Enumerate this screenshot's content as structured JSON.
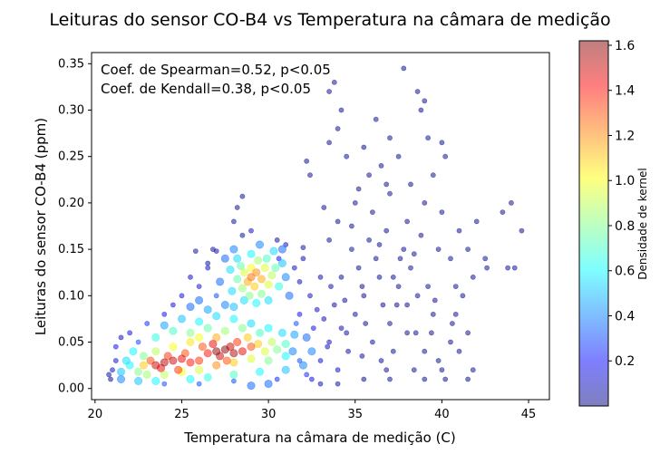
{
  "chart_data": {
    "type": "scatter",
    "title": "Leituras do sensor CO-B4 vs Temperatura na câmara de medição",
    "xlabel": "Temperatura na câmara de medição (C)",
    "ylabel": "Leituras do sensor CO-B4 (ppm)",
    "xlim": [
      19.8,
      46.2
    ],
    "ylim": [
      -0.012,
      0.362
    ],
    "xticks": [
      20,
      25,
      30,
      35,
      40,
      45
    ],
    "yticks": [
      0.0,
      0.05,
      0.1,
      0.15,
      0.2,
      0.25,
      0.3,
      0.35
    ],
    "xtick_labels": [
      "20",
      "25",
      "30",
      "35",
      "40",
      "45"
    ],
    "ytick_labels": [
      "0.00",
      "0.05",
      "0.10",
      "0.15",
      "0.20",
      "0.25",
      "0.30",
      "0.35"
    ],
    "grid": false,
    "annotations": [
      "Coef. de Spearman=0.52, p<0.05",
      "Coef. de Kendall=0.38, p<0.05"
    ],
    "colorbar": {
      "label": "Densidade de kernel",
      "range": [
        0.0,
        1.62
      ],
      "ticks": [
        0.2,
        0.4,
        0.6,
        0.8,
        1.0,
        1.2,
        1.4,
        1.6
      ],
      "tick_labels": [
        "0.2",
        "0.4",
        "0.6",
        "0.8",
        "1.0",
        "1.2",
        "1.4",
        "1.6"
      ],
      "colormap": [
        "#00007f",
        "#0000ff",
        "#007fff",
        "#00ffff",
        "#7fff7f",
        "#ffff00",
        "#ff7f00",
        "#ff0000",
        "#7f0000"
      ]
    },
    "marker_alpha": 0.5,
    "points": [
      [
        23.5,
        0.025,
        1.5
      ],
      [
        24.0,
        0.028,
        1.55
      ],
      [
        24.5,
        0.03,
        1.5
      ],
      [
        25.0,
        0.032,
        1.45
      ],
      [
        23.8,
        0.022,
        1.45
      ],
      [
        24.2,
        0.035,
        1.35
      ],
      [
        25.5,
        0.028,
        1.4
      ],
      [
        26.0,
        0.03,
        1.35
      ],
      [
        23.2,
        0.03,
        1.3
      ],
      [
        24.8,
        0.02,
        1.35
      ],
      [
        25.2,
        0.038,
        1.3
      ],
      [
        22.8,
        0.025,
        1.1
      ],
      [
        27.0,
        0.04,
        1.6
      ],
      [
        27.5,
        0.042,
        1.6
      ],
      [
        28.0,
        0.038,
        1.55
      ],
      [
        27.8,
        0.045,
        1.5
      ],
      [
        27.2,
        0.035,
        1.5
      ],
      [
        28.5,
        0.04,
        1.45
      ],
      [
        26.8,
        0.048,
        1.45
      ],
      [
        28.2,
        0.05,
        1.35
      ],
      [
        26.5,
        0.038,
        1.4
      ],
      [
        29.0,
        0.045,
        1.3
      ],
      [
        27.6,
        0.03,
        1.3
      ],
      [
        26.2,
        0.045,
        1.3
      ],
      [
        29.4,
        0.048,
        1.1
      ],
      [
        29.8,
        0.04,
        0.95
      ],
      [
        30.2,
        0.05,
        0.9
      ],
      [
        30.5,
        0.042,
        0.8
      ],
      [
        31.0,
        0.048,
        0.7
      ],
      [
        28.8,
        0.055,
        1.1
      ],
      [
        27.0,
        0.055,
        1.15
      ],
      [
        26.0,
        0.055,
        1.0
      ],
      [
        25.5,
        0.05,
        1.05
      ],
      [
        24.5,
        0.045,
        1.0
      ],
      [
        23.5,
        0.04,
        0.9
      ],
      [
        22.8,
        0.035,
        0.8
      ],
      [
        22.5,
        0.018,
        0.8
      ],
      [
        23.0,
        0.015,
        0.85
      ],
      [
        24.0,
        0.015,
        0.9
      ],
      [
        25.0,
        0.018,
        1.0
      ],
      [
        26.0,
        0.02,
        0.95
      ],
      [
        27.0,
        0.025,
        1.2
      ],
      [
        28.0,
        0.028,
        1.1
      ],
      [
        29.0,
        0.032,
        0.95
      ],
      [
        30.0,
        0.03,
        0.8
      ],
      [
        31.0,
        0.035,
        0.6
      ],
      [
        21.5,
        0.018,
        0.5
      ],
      [
        22.0,
        0.025,
        0.6
      ],
      [
        21.8,
        0.03,
        0.55
      ],
      [
        22.2,
        0.04,
        0.6
      ],
      [
        21.5,
        0.01,
        0.4
      ],
      [
        22.5,
        0.008,
        0.5
      ],
      [
        23.5,
        0.008,
        0.6
      ],
      [
        25.5,
        0.01,
        0.6
      ],
      [
        26.5,
        0.012,
        0.65
      ],
      [
        28.0,
        0.015,
        0.7
      ],
      [
        29.5,
        0.018,
        0.6
      ],
      [
        31.0,
        0.02,
        0.5
      ],
      [
        32.0,
        0.025,
        0.4
      ],
      [
        32.5,
        0.04,
        0.4
      ],
      [
        25.5,
        0.06,
        0.8
      ],
      [
        26.5,
        0.065,
        0.75
      ],
      [
        27.5,
        0.062,
        0.85
      ],
      [
        28.5,
        0.065,
        0.8
      ],
      [
        24.5,
        0.062,
        0.7
      ],
      [
        23.5,
        0.055,
        0.65
      ],
      [
        26.0,
        0.072,
        0.6
      ],
      [
        27.0,
        0.078,
        0.55
      ],
      [
        28.0,
        0.075,
        0.6
      ],
      [
        25.0,
        0.075,
        0.5
      ],
      [
        24.0,
        0.068,
        0.45
      ],
      [
        29.0,
        0.07,
        0.55
      ],
      [
        29.5,
        0.06,
        0.7
      ],
      [
        30.0,
        0.065,
        0.6
      ],
      [
        30.8,
        0.06,
        0.55
      ],
      [
        31.5,
        0.058,
        0.45
      ],
      [
        32.2,
        0.055,
        0.35
      ],
      [
        26.5,
        0.085,
        0.45
      ],
      [
        27.5,
        0.09,
        0.4
      ],
      [
        28.0,
        0.088,
        0.5
      ],
      [
        26.0,
        0.095,
        0.35
      ],
      [
        25.5,
        0.088,
        0.35
      ],
      [
        27.0,
        0.1,
        0.3
      ],
      [
        29.0,
        0.12,
        1.25
      ],
      [
        29.3,
        0.125,
        1.2
      ],
      [
        28.8,
        0.115,
        1.15
      ],
      [
        29.6,
        0.118,
        1.15
      ],
      [
        29.2,
        0.11,
        1.1
      ],
      [
        29.0,
        0.13,
        1.0
      ],
      [
        28.6,
        0.125,
        0.95
      ],
      [
        29.8,
        0.13,
        0.95
      ],
      [
        30.0,
        0.112,
        0.95
      ],
      [
        28.5,
        0.108,
        0.85
      ],
      [
        29.4,
        0.138,
        0.85
      ],
      [
        30.2,
        0.122,
        0.9
      ],
      [
        28.4,
        0.132,
        0.75
      ],
      [
        29.9,
        0.14,
        0.7
      ],
      [
        28.9,
        0.1,
        0.8
      ],
      [
        29.6,
        0.102,
        0.8
      ],
      [
        30.4,
        0.13,
        0.75
      ],
      [
        28.2,
        0.118,
        0.75
      ],
      [
        29.0,
        0.145,
        0.6
      ],
      [
        30.3,
        0.148,
        0.55
      ],
      [
        28.2,
        0.14,
        0.55
      ],
      [
        30.6,
        0.11,
        0.65
      ],
      [
        27.9,
        0.105,
        0.55
      ],
      [
        29.3,
        0.092,
        0.6
      ],
      [
        30.0,
        0.095,
        0.55
      ],
      [
        28.6,
        0.095,
        0.55
      ],
      [
        30.8,
        0.135,
        0.5
      ],
      [
        27.8,
        0.128,
        0.55
      ],
      [
        31.0,
        0.12,
        0.4
      ],
      [
        28.0,
        0.15,
        0.4
      ],
      [
        29.5,
        0.155,
        0.4
      ],
      [
        30.8,
        0.15,
        0.35
      ],
      [
        27.5,
        0.14,
        0.35
      ],
      [
        27.2,
        0.115,
        0.35
      ],
      [
        31.2,
        0.1,
        0.35
      ],
      [
        24.0,
        0.08,
        0.2
      ],
      [
        23.0,
        0.07,
        0.25
      ],
      [
        22.0,
        0.06,
        0.15
      ],
      [
        21.5,
        0.055,
        0.1
      ],
      [
        22.5,
        0.05,
        0.3
      ],
      [
        21.2,
        0.045,
        0.2
      ],
      [
        26.0,
        0.11,
        0.15
      ],
      [
        25.0,
        0.1,
        0.15
      ],
      [
        24.5,
        0.09,
        0.15
      ],
      [
        25.5,
        0.12,
        0.1
      ],
      [
        26.5,
        0.13,
        0.1
      ],
      [
        27.0,
        0.148,
        0.05
      ],
      [
        28.5,
        0.165,
        0.05
      ],
      [
        29.0,
        0.17,
        0.1
      ],
      [
        28.0,
        0.18,
        0.05
      ],
      [
        28.2,
        0.195,
        0.02
      ],
      [
        28.5,
        0.207,
        0.02
      ],
      [
        30.5,
        0.16,
        0.02
      ],
      [
        31.0,
        0.155,
        0.1
      ],
      [
        30.6,
        0.14,
        0.2
      ],
      [
        31.5,
        0.13,
        0.1
      ],
      [
        31.8,
        0.115,
        0.1
      ],
      [
        32.0,
        0.14,
        0.05
      ],
      [
        32.0,
        0.152,
        0.05
      ],
      [
        25.8,
        0.148,
        0.02
      ],
      [
        26.8,
        0.15,
        0.05
      ],
      [
        26.5,
        0.135,
        0.05
      ],
      [
        21.0,
        0.02,
        0.1
      ],
      [
        20.8,
        0.015,
        0.05
      ],
      [
        21.2,
        0.03,
        0.15
      ],
      [
        20.9,
        0.01,
        0.02
      ],
      [
        24.0,
        0.005,
        0.3
      ],
      [
        26.0,
        0.005,
        0.3
      ],
      [
        28.0,
        0.008,
        0.3
      ],
      [
        30.5,
        0.01,
        0.25
      ],
      [
        32.5,
        0.01,
        0.15
      ],
      [
        33.0,
        0.03,
        0.15
      ],
      [
        33.5,
        0.05,
        0.1
      ],
      [
        34.0,
        0.02,
        0.1
      ],
      [
        34.5,
        0.06,
        0.05
      ],
      [
        33.2,
        0.075,
        0.1
      ],
      [
        33.8,
        0.09,
        0.05
      ],
      [
        35.0,
        0.08,
        0.05
      ],
      [
        35.5,
        0.1,
        0.02
      ],
      [
        36.0,
        0.05,
        0.05
      ],
      [
        36.5,
        0.03,
        0.05
      ],
      [
        37.0,
        0.07,
        0.02
      ],
      [
        37.5,
        0.11,
        0.02
      ],
      [
        38.0,
        0.09,
        0.02
      ],
      [
        38.5,
        0.06,
        0.02
      ],
      [
        39.0,
        0.04,
        0.02
      ],
      [
        39.5,
        0.08,
        0.02
      ],
      [
        40.0,
        0.02,
        0.02
      ],
      [
        40.5,
        0.05,
        0.02
      ],
      [
        34.2,
        0.12,
        0.02
      ],
      [
        35.2,
        0.13,
        0.02
      ],
      [
        36.2,
        0.14,
        0.02
      ],
      [
        37.2,
        0.12,
        0.02
      ],
      [
        38.2,
        0.13,
        0.02
      ],
      [
        39.2,
        0.11,
        0.02
      ],
      [
        34.8,
        0.15,
        0.02
      ],
      [
        35.8,
        0.16,
        0.02
      ],
      [
        36.8,
        0.17,
        0.02
      ],
      [
        37.8,
        0.15,
        0.02
      ],
      [
        38.8,
        0.165,
        0.02
      ],
      [
        39.8,
        0.15,
        0.02
      ],
      [
        33.5,
        0.16,
        0.02
      ],
      [
        34.0,
        0.18,
        0.02
      ],
      [
        35.0,
        0.2,
        0.02
      ],
      [
        36.0,
        0.19,
        0.02
      ],
      [
        37.0,
        0.21,
        0.02
      ],
      [
        38.0,
        0.18,
        0.02
      ],
      [
        39.0,
        0.2,
        0.02
      ],
      [
        40.0,
        0.19,
        0.02
      ],
      [
        41.0,
        0.17,
        0.02
      ],
      [
        42.0,
        0.18,
        0.02
      ],
      [
        43.5,
        0.19,
        0.02
      ],
      [
        44.0,
        0.2,
        0.02
      ],
      [
        44.6,
        0.17,
        0.02
      ],
      [
        43.8,
        0.13,
        0.02
      ],
      [
        42.6,
        0.13,
        0.02
      ],
      [
        41.8,
        0.12,
        0.02
      ],
      [
        41.2,
        0.1,
        0.02
      ],
      [
        40.8,
        0.08,
        0.02
      ],
      [
        41.5,
        0.06,
        0.02
      ],
      [
        41.0,
        0.04,
        0.02
      ],
      [
        41.8,
        0.02,
        0.02
      ],
      [
        41.5,
        0.01,
        0.02
      ],
      [
        40.2,
        0.01,
        0.02
      ],
      [
        39.0,
        0.01,
        0.02
      ],
      [
        37.0,
        0.01,
        0.02
      ],
      [
        35.5,
        0.01,
        0.02
      ],
      [
        34.0,
        0.005,
        0.05
      ],
      [
        33.0,
        0.005,
        0.1
      ],
      [
        32.4,
        0.23,
        0.02
      ],
      [
        32.2,
        0.245,
        0.02
      ],
      [
        33.5,
        0.265,
        0.02
      ],
      [
        34.0,
        0.28,
        0.02
      ],
      [
        34.2,
        0.3,
        0.02
      ],
      [
        33.5,
        0.32,
        0.02
      ],
      [
        33.8,
        0.33,
        0.02
      ],
      [
        35.5,
        0.26,
        0.02
      ],
      [
        36.5,
        0.24,
        0.02
      ],
      [
        37.0,
        0.27,
        0.02
      ],
      [
        37.5,
        0.25,
        0.02
      ],
      [
        37.8,
        0.345,
        0.02
      ],
      [
        38.6,
        0.32,
        0.02
      ],
      [
        38.8,
        0.3,
        0.02
      ],
      [
        39.0,
        0.31,
        0.02
      ],
      [
        39.2,
        0.27,
        0.02
      ],
      [
        40.0,
        0.265,
        0.02
      ],
      [
        40.2,
        0.25,
        0.02
      ],
      [
        36.2,
        0.29,
        0.02
      ],
      [
        35.8,
        0.23,
        0.02
      ],
      [
        34.5,
        0.25,
        0.02
      ],
      [
        36.8,
        0.22,
        0.02
      ],
      [
        38.2,
        0.22,
        0.02
      ],
      [
        39.5,
        0.23,
        0.02
      ],
      [
        35.2,
        0.215,
        0.02
      ],
      [
        33.2,
        0.195,
        0.02
      ],
      [
        34.8,
        0.175,
        0.02
      ],
      [
        36.4,
        0.155,
        0.02
      ],
      [
        37.6,
        0.14,
        0.02
      ],
      [
        38.4,
        0.145,
        0.02
      ],
      [
        40.5,
        0.14,
        0.02
      ],
      [
        41.5,
        0.15,
        0.02
      ],
      [
        42.5,
        0.14,
        0.02
      ],
      [
        44.2,
        0.13,
        0.02
      ],
      [
        40.8,
        0.11,
        0.02
      ],
      [
        39.6,
        0.095,
        0.02
      ],
      [
        38.0,
        0.06,
        0.02
      ],
      [
        37.2,
        0.04,
        0.02
      ],
      [
        36.6,
        0.09,
        0.02
      ],
      [
        35.6,
        0.07,
        0.02
      ],
      [
        34.6,
        0.04,
        0.05
      ],
      [
        33.6,
        0.11,
        0.05
      ],
      [
        32.8,
        0.085,
        0.1
      ],
      [
        32.6,
        0.065,
        0.15
      ],
      [
        33.4,
        0.045,
        0.1
      ],
      [
        34.4,
        0.095,
        0.05
      ],
      [
        35.4,
        0.11,
        0.02
      ],
      [
        36.4,
        0.12,
        0.02
      ],
      [
        37.4,
        0.09,
        0.02
      ],
      [
        38.6,
        0.1,
        0.02
      ],
      [
        39.4,
        0.06,
        0.02
      ],
      [
        40.6,
        0.07,
        0.02
      ],
      [
        39.8,
        0.03,
        0.02
      ],
      [
        38.4,
        0.02,
        0.02
      ],
      [
        36.8,
        0.02,
        0.02
      ],
      [
        35.4,
        0.035,
        0.02
      ],
      [
        34.2,
        0.065,
        0.05
      ],
      [
        33.0,
        0.12,
        0.05
      ],
      [
        32.4,
        0.1,
        0.1
      ],
      [
        31.8,
        0.08,
        0.2
      ],
      [
        31.6,
        0.07,
        0.3
      ],
      [
        31.4,
        0.04,
        0.4
      ],
      [
        31.8,
        0.03,
        0.3
      ],
      [
        32.2,
        0.015,
        0.25
      ],
      [
        30.0,
        0.005,
        0.35
      ],
      [
        29.0,
        0.003,
        0.35
      ]
    ]
  }
}
